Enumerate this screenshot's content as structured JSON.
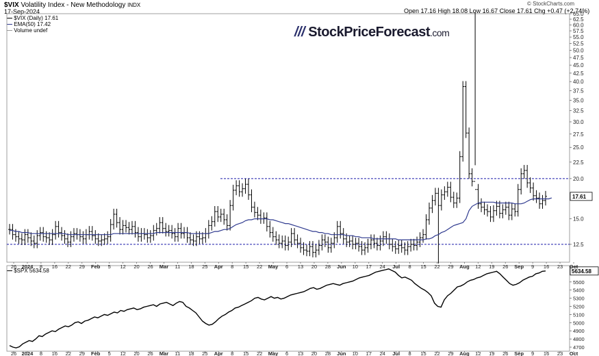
{
  "header": {
    "symbol": "$VIX",
    "name": "Volatility Index - New Methodology",
    "exchange": "INDX",
    "date": "17-Sep-2024",
    "ohlc": "Open 17.16  High 18.08  Low 16.67  Close 17.61  Chg +0.47 (+2.74%)",
    "credit": "© StockCharts.com"
  },
  "watermark": {
    "text": "StockPriceForecast",
    "suffix": ".com"
  },
  "legend": {
    "vix": "$VIX (Daily) 17.61",
    "ema": "EMA(50) 17.42",
    "volume": "Volume undef",
    "spx": "$SPX 5634.58"
  },
  "colors": {
    "price_bars": "#000000",
    "ema": "#2f3a8f",
    "ref_lines": "#1a1aaa",
    "spx_line": "#000000"
  },
  "x_axis_labels": [
    "26",
    "2024",
    "8",
    "16",
    "22",
    "29",
    "Feb",
    "5",
    "12",
    "20",
    "26",
    "Mar",
    "11",
    "18",
    "25",
    "Apr",
    "8",
    "15",
    "22",
    "May",
    "6",
    "13",
    "20",
    "28",
    "Jun",
    "10",
    "17",
    "24",
    "Jul",
    "8",
    "15",
    "22",
    "29",
    "Aug",
    "12",
    "19",
    "26",
    "Sep",
    "9",
    "16",
    "23",
    "Oct"
  ],
  "chart_data": [
    {
      "type": "ohlc",
      "title": "$VIX Volatility Index - New Methodology",
      "series": [
        {
          "name": "$VIX (Daily)",
          "close": [
            13.9,
            13.4,
            13.2,
            13.0,
            12.9,
            13.4,
            13.1,
            12.8,
            12.6,
            13.3,
            13.6,
            13.2,
            13.1,
            12.9,
            13.4,
            14.2,
            13.6,
            13.3,
            13.0,
            12.7,
            13.2,
            13.5,
            13.4,
            13.2,
            13.0,
            13.4,
            13.7,
            13.3,
            13.0,
            12.8,
            12.9,
            13.0,
            13.2,
            14.4,
            15.5,
            14.6,
            13.9,
            14.3,
            14.1,
            13.9,
            14.2,
            13.6,
            13.2,
            13.5,
            13.4,
            13.1,
            13.3,
            13.8,
            14.0,
            14.6,
            14.0,
            13.7,
            13.8,
            13.5,
            13.2,
            14.0,
            13.5,
            13.6,
            13.1,
            12.9,
            12.8,
            13.2,
            13.0,
            13.1,
            13.5,
            14.3,
            14.7,
            15.8,
            15.2,
            15.5,
            14.9,
            14.3,
            16.5,
            18.4,
            19.0,
            18.2,
            18.6,
            19.2,
            17.8,
            16.3,
            15.7,
            15.4,
            15.0,
            15.1,
            14.2,
            13.6,
            13.2,
            12.9,
            12.6,
            12.8,
            12.4,
            12.7,
            13.5,
            12.9,
            12.6,
            12.2,
            12.0,
            11.9,
            12.3,
            11.8,
            12.0,
            12.4,
            12.9,
            12.7,
            12.2,
            12.6,
            13.1,
            14.2,
            13.5,
            13.0,
            12.7,
            12.8,
            12.5,
            12.6,
            12.3,
            12.0,
            12.2,
            12.5,
            12.9,
            12.6,
            12.4,
            12.8,
            13.2,
            13.0,
            12.5,
            12.3,
            12.1,
            12.4,
            12.2,
            12.0,
            12.3,
            12.5,
            12.4,
            12.7,
            13.1,
            13.4,
            14.9,
            16.2,
            17.1,
            18.0,
            16.5,
            17.8,
            18.2,
            18.8,
            17.5,
            16.8,
            17.4,
            23.4,
            38.6,
            27.7,
            20.7,
            19.6,
            18.5,
            16.7,
            16.3,
            16.0,
            15.8,
            15.2,
            15.9,
            16.4,
            15.6,
            16.0,
            16.3,
            15.4,
            16.1,
            15.8,
            18.5,
            20.7,
            21.2,
            19.4,
            18.7,
            17.7,
            17.4,
            16.7,
            17.1,
            17.61
          ]
        },
        {
          "name": "EMA(50)",
          "values": [
            13.8,
            13.8,
            13.7,
            13.7,
            13.6,
            13.6,
            13.6,
            13.5,
            13.5,
            13.5,
            13.5,
            13.5,
            13.5,
            13.5,
            13.5,
            13.5,
            13.5,
            13.5,
            13.5,
            13.4,
            13.4,
            13.4,
            13.4,
            13.4,
            13.4,
            13.4,
            13.4,
            13.4,
            13.4,
            13.4,
            13.4,
            13.4,
            13.4,
            13.4,
            13.5,
            13.5,
            13.5,
            13.5,
            13.5,
            13.5,
            13.5,
            13.5,
            13.5,
            13.5,
            13.5,
            13.5,
            13.5,
            13.5,
            13.6,
            13.6,
            13.6,
            13.6,
            13.6,
            13.6,
            13.6,
            13.6,
            13.6,
            13.6,
            13.6,
            13.5,
            13.5,
            13.5,
            13.5,
            13.5,
            13.5,
            13.5,
            13.6,
            13.7,
            13.7,
            13.8,
            13.9,
            13.9,
            14.0,
            14.2,
            14.4,
            14.5,
            14.6,
            14.8,
            14.9,
            14.9,
            15.0,
            15.0,
            15.0,
            15.0,
            15.0,
            14.9,
            14.9,
            14.8,
            14.7,
            14.6,
            14.5,
            14.5,
            14.4,
            14.3,
            14.2,
            14.1,
            14.0,
            13.9,
            13.8,
            13.7,
            13.7,
            13.6,
            13.6,
            13.5,
            13.5,
            13.4,
            13.4,
            13.4,
            13.4,
            13.4,
            13.3,
            13.3,
            13.3,
            13.2,
            13.2,
            13.1,
            13.1,
            13.1,
            13.1,
            13.0,
            13.0,
            13.0,
            13.0,
            13.0,
            13.0,
            13.0,
            13.0,
            12.9,
            12.9,
            12.9,
            12.9,
            12.9,
            12.9,
            12.9,
            12.9,
            12.9,
            13.0,
            13.0,
            13.1,
            13.3,
            13.4,
            13.6,
            13.7,
            13.9,
            14.1,
            14.3,
            14.4,
            14.5,
            14.6,
            15.0,
            15.9,
            16.4,
            16.6,
            16.8,
            16.9,
            16.9,
            16.9,
            16.9,
            16.9,
            16.8,
            16.8,
            16.8,
            16.8,
            16.8,
            16.8,
            16.7,
            16.7,
            16.7,
            16.8,
            17.0,
            17.2,
            17.3,
            17.3,
            17.3,
            17.3,
            17.3,
            17.3,
            17.42
          ]
        }
      ],
      "reference_lines": [
        20.0,
        12.5
      ],
      "last_value_label": "17.61",
      "y_ticks": [
        "65.0",
        "62.5",
        "60.0",
        "57.5",
        "55.0",
        "52.5",
        "50.0",
        "47.5",
        "45.0",
        "42.5",
        "40.0",
        "37.5",
        "35.0",
        "32.5",
        "30.0",
        "27.5",
        "25.0",
        "22.5",
        "20.0",
        "15.0",
        "12.5"
      ],
      "y_scale": "log",
      "ylim": [
        11,
        65
      ],
      "grid": false,
      "legend_position": "top-left"
    },
    {
      "type": "line",
      "series": [
        {
          "name": "$SPX",
          "values": [
            4720,
            4700,
            4690,
            4705,
            4740,
            4760,
            4780,
            4770,
            4800,
            4840,
            4830,
            4860,
            4880,
            4900,
            4890,
            4920,
            4940,
            4960,
            4950,
            4970,
            5000,
            5010,
            4990,
            5020,
            5030,
            5050,
            5070,
            5060,
            5080,
            5100,
            5090,
            5110,
            5130,
            5120,
            5150,
            5140,
            5160,
            5170,
            5180,
            5160,
            5170,
            5190,
            5200,
            5210,
            5220,
            5200,
            5230,
            5240,
            5250,
            5230,
            5210,
            5240,
            5260,
            5250,
            5200,
            5180,
            5150,
            5120,
            5070,
            5020,
            4990,
            4970,
            4980,
            5010,
            5050,
            5080,
            5100,
            5130,
            5150,
            5180,
            5190,
            5210,
            5230,
            5250,
            5270,
            5300,
            5310,
            5290,
            5280,
            5300,
            5320,
            5300,
            5310,
            5290,
            5300,
            5320,
            5340,
            5350,
            5360,
            5370,
            5380,
            5400,
            5420,
            5430,
            5410,
            5420,
            5440,
            5460,
            5470,
            5480,
            5470,
            5460,
            5480,
            5490,
            5500,
            5510,
            5530,
            5550,
            5560,
            5570,
            5580,
            5600,
            5620,
            5630,
            5640,
            5650,
            5660,
            5640,
            5620,
            5580,
            5550,
            5560,
            5540,
            5520,
            5480,
            5450,
            5420,
            5400,
            5370,
            5330,
            5240,
            5200,
            5190,
            5280,
            5330,
            5360,
            5400,
            5440,
            5450,
            5470,
            5500,
            5520,
            5530,
            5550,
            5560,
            5580,
            5600,
            5610,
            5620,
            5630,
            5600,
            5560,
            5520,
            5480,
            5460,
            5470,
            5490,
            5520,
            5540,
            5560,
            5570,
            5600,
            5610,
            5630,
            5634.58
          ]
        }
      ],
      "last_value_label": "5634.58",
      "y_ticks": [
        "5500",
        "5400",
        "5300",
        "5200",
        "5100",
        "5000",
        "4900",
        "4800",
        "4700"
      ],
      "ylim": [
        4650,
        5700
      ],
      "grid": false,
      "legend_position": "top-left"
    }
  ]
}
